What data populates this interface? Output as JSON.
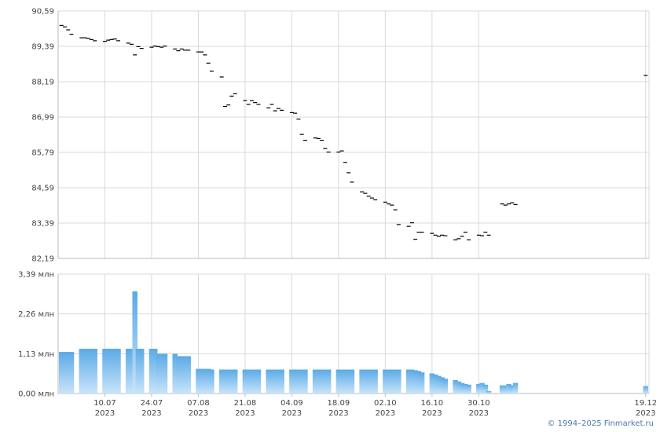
{
  "credit": "© 1994–2025 Finmarket.ru",
  "colors": {
    "grid": "#d9d9d9",
    "axis": "#bbbbbb",
    "price": "#000000",
    "bar_top": "#5aaae6",
    "bar_bottom": "#c8e4fa"
  },
  "chart_data": [
    {
      "type": "scatter",
      "marker": "dash",
      "yticks": [
        "90,59",
        "89,39",
        "88,19",
        "86,99",
        "85,79",
        "84,59",
        "83,39",
        "82,19"
      ],
      "ylim": [
        82.19,
        90.59
      ],
      "x_range": [
        "2023-06-26",
        "2023-12-20"
      ],
      "grid": true,
      "values": [
        [
          "2023-06-27",
          90.1
        ],
        [
          "2023-06-28",
          90.05
        ],
        [
          "2023-06-29",
          89.95
        ],
        [
          "2023-06-30",
          89.8
        ],
        [
          "2023-07-03",
          89.68
        ],
        [
          "2023-07-04",
          89.68
        ],
        [
          "2023-07-05",
          89.66
        ],
        [
          "2023-07-06",
          89.62
        ],
        [
          "2023-07-07",
          89.58
        ],
        [
          "2023-07-10",
          89.56
        ],
        [
          "2023-07-11",
          89.6
        ],
        [
          "2023-07-12",
          89.62
        ],
        [
          "2023-07-13",
          89.64
        ],
        [
          "2023-07-14",
          89.58
        ],
        [
          "2023-07-17",
          89.5
        ],
        [
          "2023-07-18",
          89.46
        ],
        [
          "2023-07-19",
          89.1
        ],
        [
          "2023-07-20",
          89.38
        ],
        [
          "2023-07-21",
          89.32
        ],
        [
          "2023-07-24",
          89.36
        ],
        [
          "2023-07-25",
          89.4
        ],
        [
          "2023-07-26",
          89.38
        ],
        [
          "2023-07-27",
          89.36
        ],
        [
          "2023-07-28",
          89.4
        ],
        [
          "2023-07-31",
          89.3
        ],
        [
          "2023-08-01",
          89.24
        ],
        [
          "2023-08-02",
          89.3
        ],
        [
          "2023-08-03",
          89.26
        ],
        [
          "2023-08-04",
          89.26
        ],
        [
          "2023-08-07",
          89.2
        ],
        [
          "2023-08-08",
          89.2
        ],
        [
          "2023-08-09",
          89.1
        ],
        [
          "2023-08-10",
          88.82
        ],
        [
          "2023-08-11",
          88.55
        ],
        [
          "2023-08-14",
          88.35
        ],
        [
          "2023-08-15",
          87.35
        ],
        [
          "2023-08-16",
          87.4
        ],
        [
          "2023-08-17",
          87.7
        ],
        [
          "2023-08-18",
          87.78
        ],
        [
          "2023-08-21",
          87.55
        ],
        [
          "2023-08-22",
          87.42
        ],
        [
          "2023-08-23",
          87.55
        ],
        [
          "2023-08-24",
          87.48
        ],
        [
          "2023-08-25",
          87.42
        ],
        [
          "2023-08-28",
          87.3
        ],
        [
          "2023-08-29",
          87.42
        ],
        [
          "2023-08-30",
          87.2
        ],
        [
          "2023-08-31",
          87.28
        ],
        [
          "2023-09-01",
          87.22
        ],
        [
          "2023-09-04",
          87.14
        ],
        [
          "2023-09-05",
          87.12
        ],
        [
          "2023-09-06",
          86.92
        ],
        [
          "2023-09-07",
          86.4
        ],
        [
          "2023-09-08",
          86.2
        ],
        [
          "2023-09-11",
          86.28
        ],
        [
          "2023-09-12",
          86.26
        ],
        [
          "2023-09-13",
          86.2
        ],
        [
          "2023-09-14",
          85.92
        ],
        [
          "2023-09-15",
          85.8
        ],
        [
          "2023-09-18",
          85.8
        ],
        [
          "2023-09-19",
          85.84
        ],
        [
          "2023-09-20",
          85.45
        ],
        [
          "2023-09-21",
          85.1
        ],
        [
          "2023-09-22",
          84.78
        ],
        [
          "2023-09-25",
          84.45
        ],
        [
          "2023-09-26",
          84.4
        ],
        [
          "2023-09-27",
          84.3
        ],
        [
          "2023-09-28",
          84.24
        ],
        [
          "2023-09-29",
          84.18
        ],
        [
          "2023-10-02",
          84.1
        ],
        [
          "2023-10-03",
          84.04
        ],
        [
          "2023-10-04",
          84.0
        ],
        [
          "2023-10-05",
          83.84
        ],
        [
          "2023-10-06",
          83.34
        ],
        [
          "2023-10-09",
          83.28
        ],
        [
          "2023-10-10",
          83.4
        ],
        [
          "2023-10-11",
          82.84
        ],
        [
          "2023-10-12",
          83.08
        ],
        [
          "2023-10-13",
          83.08
        ],
        [
          "2023-10-16",
          83.04
        ],
        [
          "2023-10-17",
          82.98
        ],
        [
          "2023-10-18",
          82.94
        ],
        [
          "2023-10-19",
          82.98
        ],
        [
          "2023-10-20",
          82.96
        ],
        [
          "2023-10-23",
          82.82
        ],
        [
          "2023-10-24",
          82.86
        ],
        [
          "2023-10-25",
          82.94
        ],
        [
          "2023-10-26",
          83.08
        ],
        [
          "2023-10-27",
          82.82
        ],
        [
          "2023-10-30",
          82.98
        ],
        [
          "2023-10-31",
          82.96
        ],
        [
          "2023-11-01",
          83.08
        ],
        [
          "2023-11-02",
          82.98
        ],
        [
          "2023-11-06",
          84.04
        ],
        [
          "2023-11-07",
          84.0
        ],
        [
          "2023-11-08",
          84.04
        ],
        [
          "2023-11-09",
          84.08
        ],
        [
          "2023-11-10",
          84.02
        ],
        [
          "2023-12-19",
          88.4
        ]
      ]
    },
    {
      "type": "bar",
      "yticks": [
        "3,39 млн",
        "2,26 млн",
        "1,13 млн",
        "0,00 млн"
      ],
      "ylim": [
        0,
        3.39
      ],
      "unit": "млн",
      "grid": true,
      "xticks": [
        [
          "2023-07-10",
          "10.07",
          "2023"
        ],
        [
          "2023-07-24",
          "24.07",
          "2023"
        ],
        [
          "2023-08-07",
          "07.08",
          "2023"
        ],
        [
          "2023-08-21",
          "21.08",
          "2023"
        ],
        [
          "2023-09-04",
          "04.09",
          "2023"
        ],
        [
          "2023-09-18",
          "18.09",
          "2023"
        ],
        [
          "2023-10-02",
          "02.10",
          "2023"
        ],
        [
          "2023-10-16",
          "16.10",
          "2023"
        ],
        [
          "2023-10-30",
          "30.10",
          "2023"
        ],
        [
          "2023-12-19",
          "19.12",
          "2023"
        ]
      ],
      "values": [
        [
          "2023-06-27",
          1.18
        ],
        [
          "2023-06-28",
          1.18
        ],
        [
          "2023-06-29",
          1.18
        ],
        [
          "2023-06-30",
          1.18
        ],
        [
          "2023-07-03",
          1.27
        ],
        [
          "2023-07-04",
          1.27
        ],
        [
          "2023-07-05",
          1.27
        ],
        [
          "2023-07-06",
          1.27
        ],
        [
          "2023-07-07",
          1.27
        ],
        [
          "2023-07-10",
          1.27
        ],
        [
          "2023-07-11",
          1.27
        ],
        [
          "2023-07-12",
          1.27
        ],
        [
          "2023-07-13",
          1.27
        ],
        [
          "2023-07-14",
          1.27
        ],
        [
          "2023-07-17",
          1.27
        ],
        [
          "2023-07-18",
          1.27
        ],
        [
          "2023-07-19",
          2.9
        ],
        [
          "2023-07-20",
          1.27
        ],
        [
          "2023-07-21",
          1.27
        ],
        [
          "2023-07-24",
          1.27
        ],
        [
          "2023-07-25",
          1.27
        ],
        [
          "2023-07-26",
          1.13
        ],
        [
          "2023-07-27",
          1.13
        ],
        [
          "2023-07-28",
          1.13
        ],
        [
          "2023-07-31",
          1.13
        ],
        [
          "2023-08-01",
          1.06
        ],
        [
          "2023-08-02",
          1.06
        ],
        [
          "2023-08-03",
          1.06
        ],
        [
          "2023-08-04",
          1.06
        ],
        [
          "2023-08-07",
          0.7
        ],
        [
          "2023-08-08",
          0.7
        ],
        [
          "2023-08-09",
          0.7
        ],
        [
          "2023-08-10",
          0.7
        ],
        [
          "2023-08-11",
          0.68
        ],
        [
          "2023-08-14",
          0.68
        ],
        [
          "2023-08-15",
          0.68
        ],
        [
          "2023-08-16",
          0.68
        ],
        [
          "2023-08-17",
          0.68
        ],
        [
          "2023-08-18",
          0.68
        ],
        [
          "2023-08-21",
          0.68
        ],
        [
          "2023-08-22",
          0.68
        ],
        [
          "2023-08-23",
          0.68
        ],
        [
          "2023-08-24",
          0.68
        ],
        [
          "2023-08-25",
          0.68
        ],
        [
          "2023-08-28",
          0.68
        ],
        [
          "2023-08-29",
          0.68
        ],
        [
          "2023-08-30",
          0.68
        ],
        [
          "2023-08-31",
          0.68
        ],
        [
          "2023-09-01",
          0.68
        ],
        [
          "2023-09-04",
          0.68
        ],
        [
          "2023-09-05",
          0.68
        ],
        [
          "2023-09-06",
          0.68
        ],
        [
          "2023-09-07",
          0.68
        ],
        [
          "2023-09-08",
          0.68
        ],
        [
          "2023-09-11",
          0.68
        ],
        [
          "2023-09-12",
          0.68
        ],
        [
          "2023-09-13",
          0.68
        ],
        [
          "2023-09-14",
          0.68
        ],
        [
          "2023-09-15",
          0.68
        ],
        [
          "2023-09-18",
          0.68
        ],
        [
          "2023-09-19",
          0.68
        ],
        [
          "2023-09-20",
          0.68
        ],
        [
          "2023-09-21",
          0.68
        ],
        [
          "2023-09-22",
          0.68
        ],
        [
          "2023-09-25",
          0.68
        ],
        [
          "2023-09-26",
          0.68
        ],
        [
          "2023-09-27",
          0.68
        ],
        [
          "2023-09-28",
          0.68
        ],
        [
          "2023-09-29",
          0.68
        ],
        [
          "2023-10-02",
          0.68
        ],
        [
          "2023-10-03",
          0.68
        ],
        [
          "2023-10-04",
          0.68
        ],
        [
          "2023-10-05",
          0.68
        ],
        [
          "2023-10-06",
          0.68
        ],
        [
          "2023-10-09",
          0.68
        ],
        [
          "2023-10-10",
          0.68
        ],
        [
          "2023-10-11",
          0.66
        ],
        [
          "2023-10-12",
          0.64
        ],
        [
          "2023-10-13",
          0.6
        ],
        [
          "2023-10-16",
          0.57
        ],
        [
          "2023-10-17",
          0.54
        ],
        [
          "2023-10-18",
          0.5
        ],
        [
          "2023-10-19",
          0.46
        ],
        [
          "2023-10-20",
          0.42
        ],
        [
          "2023-10-23",
          0.38
        ],
        [
          "2023-10-24",
          0.34
        ],
        [
          "2023-10-25",
          0.3
        ],
        [
          "2023-10-26",
          0.27
        ],
        [
          "2023-10-27",
          0.25
        ],
        [
          "2023-10-30",
          0.27
        ],
        [
          "2023-10-31",
          0.3
        ],
        [
          "2023-11-01",
          0.25
        ],
        [
          "2023-11-02",
          0.07
        ],
        [
          "2023-11-06",
          0.23
        ],
        [
          "2023-11-07",
          0.23
        ],
        [
          "2023-11-08",
          0.27
        ],
        [
          "2023-11-09",
          0.23
        ],
        [
          "2023-11-10",
          0.3
        ],
        [
          "2023-12-19",
          0.21
        ]
      ]
    }
  ]
}
